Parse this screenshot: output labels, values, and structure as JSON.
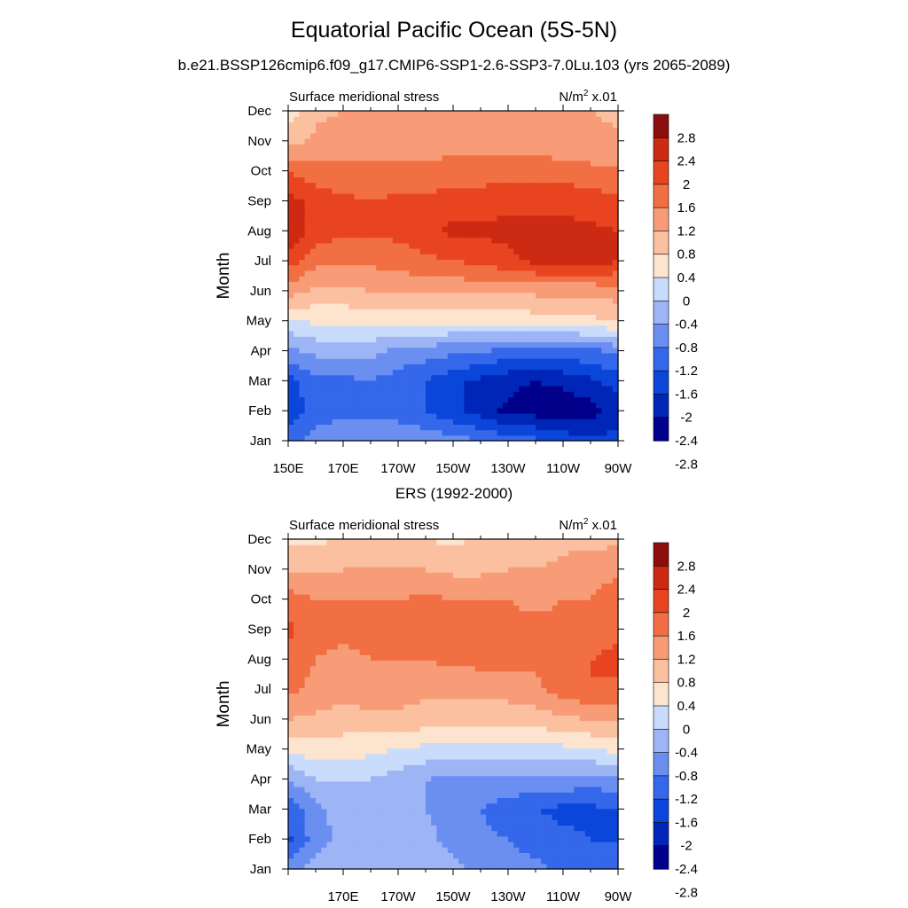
{
  "figure": {
    "title": "Equatorial Pacific Ocean (5S-5N)",
    "subtitle": "b.e21.BSSP126cmip6.f09_g17.CMIP6-SSP1-2.6-SSP3-7.0Lu.103 (yrs 2065-2089)",
    "mid_title": "ERS (1992-2000)"
  },
  "colors": {
    "levels": [
      "#00008b",
      "#0026b8",
      "#0a46d9",
      "#3467ea",
      "#6a8ff0",
      "#9db5f5",
      "#c9dcfb",
      "#fde4cf",
      "#fbc0a0",
      "#f89c78",
      "#f26f44",
      "#e84420",
      "#cc2a12",
      "#8b0e0c"
    ]
  },
  "chart_data": [
    {
      "type": "heatmap",
      "panel_label": "Surface meridional stress",
      "units_main": "N/m",
      "units_sup": "2",
      "units_tail": " x.01",
      "ylabel": "Month",
      "x_ticks": [
        "150E",
        "170E",
        "170W",
        "150W",
        "130W",
        "110W",
        "90W"
      ],
      "y_ticks": [
        "Jan",
        "Feb",
        "Mar",
        "Apr",
        "May",
        "Jun",
        "Jul",
        "Aug",
        "Sep",
        "Oct",
        "Nov",
        "Dec"
      ],
      "colorbar_labels": [
        "2.8",
        "2.4",
        "2",
        "1.6",
        "1.2",
        "0.8",
        "0.4",
        "0",
        "-0.4",
        "-0.8",
        "-1.2",
        "-1.6",
        "-2",
        "-2.4",
        "-2.8"
      ],
      "grid_x": [
        "150E",
        "160E",
        "170E",
        "180",
        "170W",
        "160W",
        "150W",
        "140W",
        "130W",
        "120W",
        "110W",
        "100W",
        "90W"
      ],
      "grid_y": [
        "Jan",
        "Feb",
        "Mar",
        "Apr",
        "May",
        "Jun",
        "Jul",
        "Aug",
        "Sep",
        "Oct",
        "Nov",
        "Dec"
      ],
      "z": [
        [
          -1.8,
          -1.4,
          -1.3,
          -1.2,
          -1.2,
          -1.3,
          -1.4,
          -1.6,
          -1.8,
          -1.9,
          -2.1,
          -2.3,
          -2.2
        ],
        [
          -2.3,
          -1.8,
          -1.7,
          -1.7,
          -1.8,
          -2.0,
          -2.3,
          -2.6,
          -2.9,
          -3.0,
          -3.1,
          -3.0,
          -2.6
        ],
        [
          -2.2,
          -1.7,
          -1.7,
          -1.6,
          -1.8,
          -2.0,
          -2.3,
          -2.5,
          -2.7,
          -2.8,
          -2.7,
          -2.5,
          -2.2
        ],
        [
          -1.3,
          -1.1,
          -1.0,
          -1.1,
          -1.3,
          -1.4,
          -1.5,
          -1.6,
          -1.7,
          -1.8,
          -1.7,
          -1.7,
          -1.5
        ],
        [
          -0.5,
          -0.3,
          -0.3,
          -0.3,
          -0.3,
          -0.3,
          -0.3,
          -0.3,
          -0.3,
          -0.2,
          -0.2,
          -0.1,
          0.05
        ],
        [
          0.6,
          0.3,
          0.3,
          0.4,
          0.4,
          0.5,
          0.5,
          0.5,
          0.5,
          0.5,
          0.5,
          0.5,
          0.6
        ],
        [
          1.4,
          0.9,
          0.9,
          0.9,
          1.0,
          1.1,
          1.2,
          1.3,
          1.5,
          1.7,
          1.8,
          1.8,
          1.6
        ],
        [
          2.0,
          1.4,
          1.3,
          1.3,
          1.3,
          1.5,
          1.7,
          1.7,
          1.7,
          1.7,
          1.7,
          1.7,
          1.6
        ],
        [
          1.8,
          1.4,
          1.3,
          1.2,
          1.3,
          1.3,
          1.4,
          1.4,
          1.5,
          1.5,
          1.5,
          1.4,
          1.3
        ],
        [
          1.2,
          1.0,
          0.9,
          0.9,
          0.9,
          0.9,
          1.0,
          1.0,
          1.0,
          1.0,
          1.0,
          0.9,
          0.9
        ],
        [
          0.2,
          0.5,
          0.6,
          0.6,
          0.6,
          0.6,
          0.6,
          0.6,
          0.6,
          0.6,
          0.5,
          0.5,
          0.5
        ],
        [
          -0.2,
          0.3,
          0.4,
          0.5,
          0.5,
          0.5,
          0.5,
          0.5,
          0.5,
          0.5,
          0.5,
          0.4,
          0.3
        ]
      ]
    },
    {
      "type": "heatmap",
      "panel_label": "Surface meridional stress",
      "units_main": "N/m",
      "units_sup": "2",
      "units_tail": " x.01",
      "ylabel": "Month",
      "x_ticks": [
        "170E",
        "170W",
        "150W",
        "130W",
        "110W",
        "90W"
      ],
      "y_ticks": [
        "Jan",
        "Feb",
        "Mar",
        "Apr",
        "May",
        "Jun",
        "Jul",
        "Aug",
        "Sep",
        "Oct",
        "Nov",
        "Dec"
      ],
      "colorbar_labels": [
        "2.8",
        "2.4",
        "2",
        "1.6",
        "1.2",
        "0.8",
        "0.4",
        "0",
        "-0.4",
        "-0.8",
        "-1.2",
        "-1.6",
        "-2",
        "-2.4",
        "-2.8"
      ],
      "grid_x": [
        "150E",
        "160E",
        "170E",
        "180",
        "170W",
        "160W",
        "150W",
        "140W",
        "130W",
        "120W",
        "110W",
        "100W",
        "90W"
      ],
      "grid_y": [
        "Jan",
        "Feb",
        "Mar",
        "Apr",
        "May",
        "Jun",
        "Jul",
        "Aug",
        "Sep",
        "Oct",
        "Nov",
        "Dec"
      ],
      "z": [
        [
          -1.4,
          -1.0,
          -0.9,
          -0.9,
          -0.9,
          -1.0,
          -1.1,
          -1.3,
          -1.4,
          -1.5,
          -1.7,
          -1.8,
          -1.8
        ],
        [
          -2.1,
          -1.4,
          -1.1,
          -1.0,
          -1.0,
          -1.1,
          -1.3,
          -1.5,
          -1.6,
          -1.8,
          -1.9,
          -2.0,
          -2.0
        ],
        [
          -1.9,
          -1.3,
          -1.0,
          -1.0,
          -1.0,
          -1.2,
          -1.4,
          -1.6,
          -1.8,
          -2.0,
          -2.1,
          -2.1,
          -2.0
        ],
        [
          -1.2,
          -0.8,
          -0.8,
          -0.8,
          -1.0,
          -1.2,
          -1.3,
          -1.3,
          -1.3,
          -1.3,
          -1.3,
          -1.4,
          -1.3
        ],
        [
          -0.3,
          -0.2,
          -0.2,
          -0.3,
          -0.4,
          -0.5,
          -0.6,
          -0.6,
          -0.6,
          -0.5,
          -0.5,
          -0.4,
          -0.3
        ],
        [
          0.4,
          0.3,
          0.2,
          0.3,
          0.3,
          0.2,
          0.1,
          0.1,
          0.1,
          0.2,
          0.3,
          0.4,
          0.5
        ],
        [
          0.9,
          0.7,
          0.6,
          0.6,
          0.6,
          0.5,
          0.5,
          0.6,
          0.6,
          0.7,
          1.0,
          1.2,
          1.1
        ],
        [
          1.0,
          0.8,
          0.7,
          0.8,
          0.8,
          0.8,
          0.9,
          0.9,
          0.9,
          0.9,
          1.0,
          1.2,
          1.3
        ],
        [
          1.3,
          0.9,
          0.9,
          0.9,
          0.9,
          0.9,
          0.9,
          0.9,
          0.9,
          0.9,
          0.9,
          1.0,
          1.1
        ],
        [
          1.0,
          0.8,
          0.8,
          0.8,
          0.8,
          0.9,
          0.8,
          0.8,
          0.8,
          0.7,
          0.8,
          0.8,
          1.1
        ],
        [
          0.4,
          0.3,
          0.4,
          0.4,
          0.4,
          0.4,
          0.3,
          0.3,
          0.4,
          0.4,
          0.5,
          0.6,
          0.7
        ],
        [
          -0.1,
          -0.1,
          0.1,
          0.1,
          0.1,
          0.0,
          -0.1,
          0.1,
          0.2,
          0.2,
          0.3,
          0.3,
          0.3
        ]
      ]
    }
  ]
}
